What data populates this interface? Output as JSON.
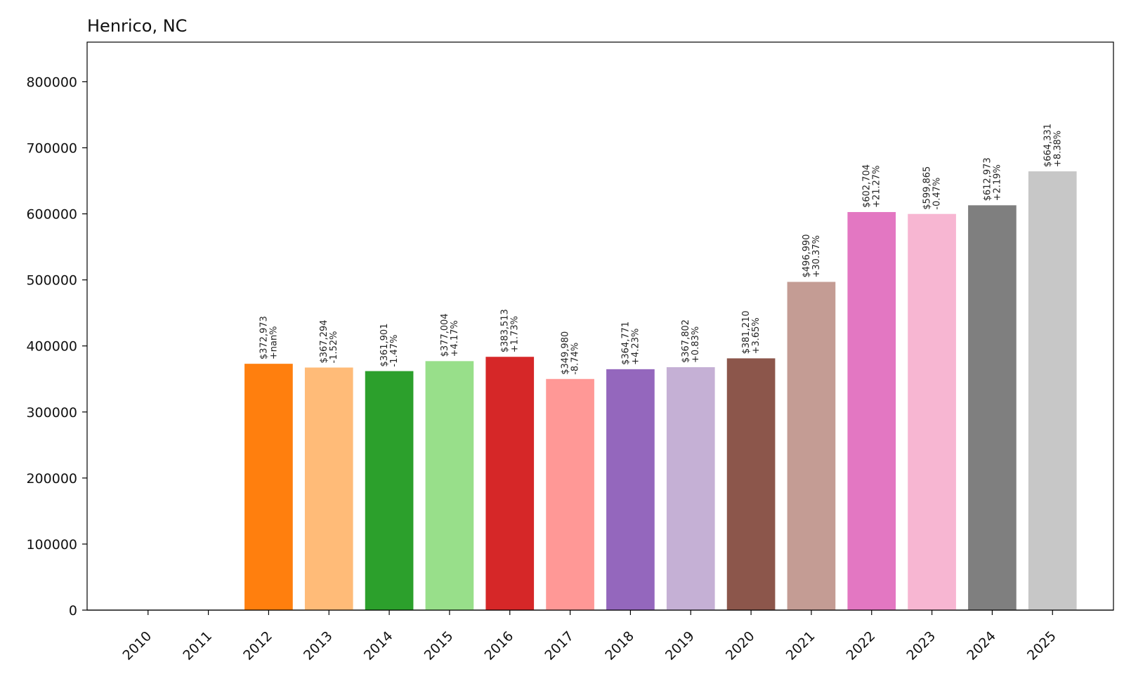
{
  "chart_data": {
    "type": "bar",
    "title": "Henrico, NC",
    "xlabel": "",
    "ylabel": "",
    "ylim": [
      0,
      860000
    ],
    "grid": false,
    "yticks": [
      0,
      100000,
      200000,
      300000,
      400000,
      500000,
      600000,
      700000,
      800000
    ],
    "categories": [
      "2010",
      "2011",
      "2012",
      "2013",
      "2014",
      "2015",
      "2016",
      "2017",
      "2018",
      "2019",
      "2020",
      "2021",
      "2022",
      "2023",
      "2024",
      "2025"
    ],
    "values": [
      0,
      0,
      372973,
      367294,
      361901,
      377004,
      383513,
      349980,
      364771,
      367802,
      381210,
      496990,
      602704,
      599865,
      612973,
      664331
    ],
    "value_labels": [
      "",
      "",
      "$372,973",
      "$367,294",
      "$361,901",
      "$377,004",
      "$383,513",
      "$349,980",
      "$364,771",
      "$367,802",
      "$381,210",
      "$496,990",
      "$602,704",
      "$599,865",
      "$612,973",
      "$664,331"
    ],
    "change_labels": [
      "",
      "",
      "+nan%",
      "-1.52%",
      "-1.47%",
      "+4.17%",
      "+1.73%",
      "-8.74%",
      "+4.23%",
      "+0.83%",
      "+3.65%",
      "+30.37%",
      "+21.27%",
      "-0.47%",
      "+2.19%",
      "+8.38%"
    ],
    "colors": [
      "#1f77b4",
      "#aec7e8",
      "#ff7f0e",
      "#ffbb78",
      "#2ca02c",
      "#98df8a",
      "#d62728",
      "#ff9896",
      "#9467bd",
      "#c5b0d5",
      "#8c564b",
      "#c49c94",
      "#e377c2",
      "#f7b6d2",
      "#7f7f7f",
      "#c7c7c7"
    ]
  }
}
